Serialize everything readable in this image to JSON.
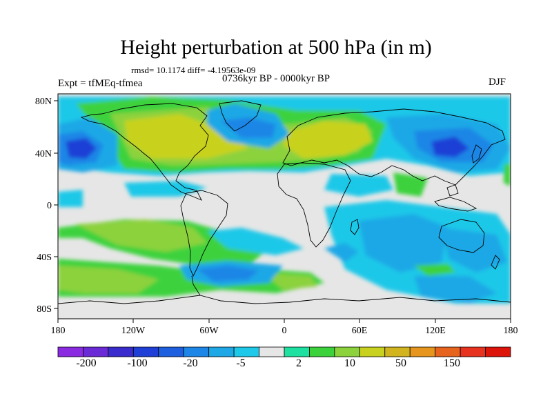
{
  "title": "Height perturbation at 500 hPa (in m)",
  "stats": "rmsd= 10.1174 diff= -4.19563e-09",
  "experiment": "Expt = tfMEq-tfmea",
  "period": "0736kyr BP - 0000kyr BP",
  "season": "DJF",
  "axes": {
    "lat_ticks": [
      {
        "value": 80,
        "label": "80N"
      },
      {
        "value": 40,
        "label": "40N"
      },
      {
        "value": 0,
        "label": "0"
      },
      {
        "value": -40,
        "label": "40S"
      },
      {
        "value": -80,
        "label": "80S"
      }
    ],
    "lon_ticks": [
      {
        "value": -180,
        "label": "180"
      },
      {
        "value": -120,
        "label": "120W"
      },
      {
        "value": -60,
        "label": "60W"
      },
      {
        "value": 0,
        "label": "0"
      },
      {
        "value": 60,
        "label": "60E"
      },
      {
        "value": 120,
        "label": "120E"
      },
      {
        "value": 180,
        "label": "180"
      }
    ]
  },
  "colorbar": {
    "colors": [
      "#8a2be2",
      "#6a2ad6",
      "#3a2ccc",
      "#1f3fd6",
      "#1e5fe0",
      "#1e86e6",
      "#1ea8e6",
      "#1ec8e8",
      "#e6e6e6",
      "#1ee0a0",
      "#3cd23c",
      "#8cd23c",
      "#c8d21e",
      "#d2b41e",
      "#e6961e",
      "#e6641e",
      "#e6321e",
      "#dc140a"
    ],
    "labels": [
      "-200",
      "-100",
      "-20",
      "-5",
      "2",
      "10",
      "50",
      "150"
    ]
  },
  "legend_labels": {
    "l0": "-200",
    "l1": "-100",
    "l2": "-20",
    "l3": "-5",
    "l4": "2",
    "l5": "10",
    "l6": "50",
    "l7": "150"
  },
  "tick_text": {
    "lat80N": "80N",
    "lat40N": "40N",
    "lat0": "0",
    "lat40S": "40S",
    "lat80S": "80S",
    "lon180W": "180",
    "lon120W": "120W",
    "lon60W": "60W",
    "lon0": "0",
    "lon60E": "60E",
    "lon120E": "120E",
    "lon180E": "180"
  }
}
